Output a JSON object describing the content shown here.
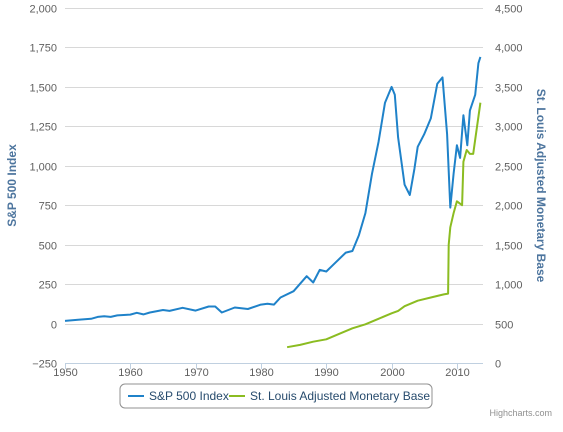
{
  "chart_data": {
    "type": "line",
    "xlim": [
      1950,
      2014
    ],
    "x_ticks": [
      1950,
      1960,
      1970,
      1980,
      1990,
      2000,
      2010
    ],
    "y_left": {
      "title": "S&P 500 Index",
      "lim": [
        -250,
        2000
      ],
      "ticks": [
        -250,
        0,
        250,
        500,
        750,
        1000,
        1250,
        1500,
        1750,
        2000
      ],
      "tick_labels": [
        "−250",
        "0",
        "250",
        "500",
        "750",
        "1,000",
        "1,250",
        "1,500",
        "1,750",
        "2,000"
      ]
    },
    "y_right": {
      "title": "St. Louis Adjusted Monetary Base",
      "lim": [
        0,
        4500
      ],
      "ticks": [
        0,
        500,
        1000,
        1500,
        2000,
        2500,
        3000,
        3500,
        4000,
        4500
      ],
      "tick_labels": [
        "0",
        "500",
        "1,000",
        "1,500",
        "2,000",
        "2,500",
        "3,000",
        "3,500",
        "4,000",
        "4,500"
      ]
    },
    "grid": "horizontal",
    "legend": "bottom-center",
    "series": [
      {
        "name": "S&P 500 Index",
        "axis": "left",
        "color": "#1f82c9",
        "points": [
          [
            1950,
            17
          ],
          [
            1952,
            24
          ],
          [
            1954,
            30
          ],
          [
            1955,
            42
          ],
          [
            1956,
            46
          ],
          [
            1957,
            42
          ],
          [
            1958,
            52
          ],
          [
            1960,
            57
          ],
          [
            1961,
            68
          ],
          [
            1962,
            58
          ],
          [
            1963,
            70
          ],
          [
            1965,
            86
          ],
          [
            1966,
            80
          ],
          [
            1968,
            100
          ],
          [
            1970,
            82
          ],
          [
            1972,
            108
          ],
          [
            1973,
            108
          ],
          [
            1974,
            70
          ],
          [
            1976,
            102
          ],
          [
            1978,
            92
          ],
          [
            1980,
            120
          ],
          [
            1981,
            125
          ],
          [
            1982,
            120
          ],
          [
            1983,
            165
          ],
          [
            1985,
            205
          ],
          [
            1987,
            300
          ],
          [
            1988,
            260
          ],
          [
            1989,
            340
          ],
          [
            1990,
            330
          ],
          [
            1991,
            370
          ],
          [
            1993,
            450
          ],
          [
            1994,
            460
          ],
          [
            1995,
            560
          ],
          [
            1996,
            700
          ],
          [
            1997,
            950
          ],
          [
            1998,
            1150
          ],
          [
            1999,
            1400
          ],
          [
            2000,
            1500
          ],
          [
            2000.5,
            1450
          ],
          [
            2001,
            1180
          ],
          [
            2002,
            880
          ],
          [
            2002.8,
            815
          ],
          [
            2003.5,
            980
          ],
          [
            2004,
            1120
          ],
          [
            2005,
            1200
          ],
          [
            2006,
            1300
          ],
          [
            2007,
            1520
          ],
          [
            2007.8,
            1560
          ],
          [
            2008.5,
            1200
          ],
          [
            2009,
            735
          ],
          [
            2009.5,
            950
          ],
          [
            2010,
            1130
          ],
          [
            2010.5,
            1050
          ],
          [
            2011,
            1320
          ],
          [
            2011.6,
            1130
          ],
          [
            2012,
            1350
          ],
          [
            2012.8,
            1450
          ],
          [
            2013.3,
            1650
          ],
          [
            2013.6,
            1690
          ]
        ]
      },
      {
        "name": "St. Louis Adjusted Monetary Base",
        "axis": "right",
        "color": "#8bbc21",
        "points": [
          [
            1984,
            200
          ],
          [
            1986,
            230
          ],
          [
            1988,
            270
          ],
          [
            1990,
            300
          ],
          [
            1992,
            370
          ],
          [
            1994,
            440
          ],
          [
            1996,
            490
          ],
          [
            1998,
            560
          ],
          [
            2000,
            630
          ],
          [
            2001,
            660
          ],
          [
            2002,
            720
          ],
          [
            2004,
            790
          ],
          [
            2006,
            830
          ],
          [
            2008,
            870
          ],
          [
            2008.65,
            880
          ],
          [
            2008.75,
            1500
          ],
          [
            2009,
            1720
          ],
          [
            2009.5,
            1900
          ],
          [
            2010,
            2050
          ],
          [
            2010.8,
            2000
          ],
          [
            2011,
            2550
          ],
          [
            2011.5,
            2700
          ],
          [
            2012,
            2650
          ],
          [
            2012.5,
            2650
          ],
          [
            2013,
            2950
          ],
          [
            2013.6,
            3300
          ]
        ]
      }
    ]
  },
  "credits": "Highcharts.com"
}
